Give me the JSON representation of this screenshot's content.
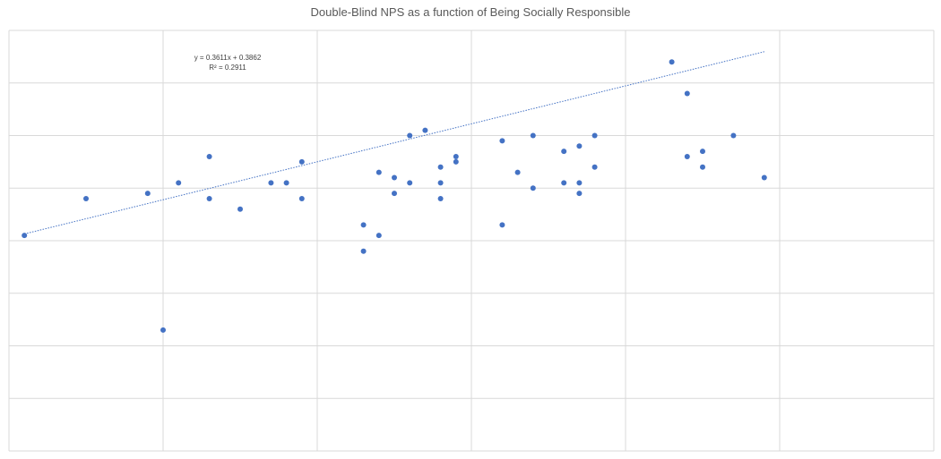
{
  "chart_data": {
    "type": "scatter",
    "title": "Double-Blind NPS as a function of Being Socially Responsible",
    "xlabel": "",
    "ylabel": "",
    "xlim": [
      -0.5,
      0.7
    ],
    "ylim": [
      -0.2,
      0.6
    ],
    "x_gridlines": [
      -0.5,
      -0.3,
      -0.1,
      0.1,
      0.3,
      0.5,
      0.7
    ],
    "y_gridlines": [
      -0.2,
      -0.1,
      0.0,
      0.1,
      0.2,
      0.3,
      0.4,
      0.5,
      0.6
    ],
    "grid": true,
    "legend": "none",
    "marker_color": "#4472C4",
    "trendline": {
      "type": "linear",
      "style": "dotted",
      "equation_label": "y = 0.3611x + 0.3862",
      "r2_label": "R² = 0.2911",
      "slope": 0.3611,
      "intercept": 0.3862,
      "x_start": -0.48,
      "x_end": 0.48
    },
    "series": [
      {
        "points": [
          {
            "x": -0.48,
            "y": 0.21
          },
          {
            "x": -0.4,
            "y": 0.28
          },
          {
            "x": -0.32,
            "y": 0.29
          },
          {
            "x": -0.3,
            "y": 0.03
          },
          {
            "x": -0.28,
            "y": 0.31
          },
          {
            "x": -0.24,
            "y": 0.36
          },
          {
            "x": -0.24,
            "y": 0.28
          },
          {
            "x": -0.2,
            "y": 0.26
          },
          {
            "x": -0.16,
            "y": 0.31
          },
          {
            "x": -0.14,
            "y": 0.31
          },
          {
            "x": -0.12,
            "y": 0.35
          },
          {
            "x": -0.12,
            "y": 0.28
          },
          {
            "x": -0.04,
            "y": 0.23
          },
          {
            "x": -0.04,
            "y": 0.18
          },
          {
            "x": -0.02,
            "y": 0.33
          },
          {
            "x": -0.02,
            "y": 0.21
          },
          {
            "x": 0.0,
            "y": 0.32
          },
          {
            "x": 0.0,
            "y": 0.29
          },
          {
            "x": 0.02,
            "y": 0.4
          },
          {
            "x": 0.02,
            "y": 0.31
          },
          {
            "x": 0.04,
            "y": 0.41
          },
          {
            "x": 0.06,
            "y": 0.34
          },
          {
            "x": 0.06,
            "y": 0.31
          },
          {
            "x": 0.06,
            "y": 0.28
          },
          {
            "x": 0.08,
            "y": 0.36
          },
          {
            "x": 0.08,
            "y": 0.35
          },
          {
            "x": 0.14,
            "y": 0.39
          },
          {
            "x": 0.14,
            "y": 0.23
          },
          {
            "x": 0.16,
            "y": 0.33
          },
          {
            "x": 0.18,
            "y": 0.4
          },
          {
            "x": 0.18,
            "y": 0.3
          },
          {
            "x": 0.22,
            "y": 0.37
          },
          {
            "x": 0.22,
            "y": 0.31
          },
          {
            "x": 0.24,
            "y": 0.38
          },
          {
            "x": 0.24,
            "y": 0.31
          },
          {
            "x": 0.24,
            "y": 0.29
          },
          {
            "x": 0.26,
            "y": 0.4
          },
          {
            "x": 0.26,
            "y": 0.34
          },
          {
            "x": 0.36,
            "y": 0.54
          },
          {
            "x": 0.38,
            "y": 0.48
          },
          {
            "x": 0.38,
            "y": 0.36
          },
          {
            "x": 0.4,
            "y": 0.37
          },
          {
            "x": 0.4,
            "y": 0.34
          },
          {
            "x": 0.44,
            "y": 0.4
          },
          {
            "x": 0.48,
            "y": 0.32
          }
        ]
      }
    ]
  }
}
